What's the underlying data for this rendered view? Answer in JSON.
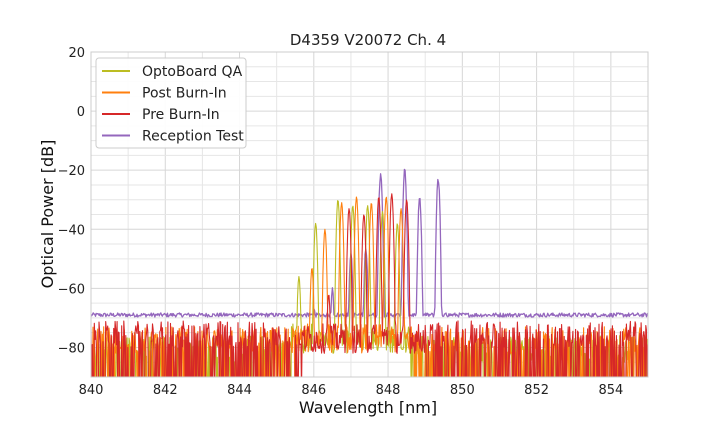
{
  "chart_data": {
    "type": "line",
    "title": "D4359 V20072 Ch. 4",
    "xlabel": "Wavelength [nm]",
    "ylabel": "Optical Power [dB]",
    "xlim": [
      840,
      855
    ],
    "ylim": [
      -90,
      20
    ],
    "xticks": [
      840,
      842,
      844,
      846,
      848,
      850,
      852,
      854
    ],
    "yticks": [
      20,
      0,
      -20,
      -40,
      -60,
      -80
    ],
    "grid": true,
    "legend_position": "top-left",
    "noise_floor": {
      "reception_test": -69,
      "burn_in": -80
    },
    "series": [
      {
        "name": "OptoBoard QA",
        "color": "#bcbd22",
        "floor": -85,
        "peaks": [
          {
            "x": 845.6,
            "y": -56
          },
          {
            "x": 846.05,
            "y": -38
          },
          {
            "x": 846.65,
            "y": -30
          },
          {
            "x": 847.05,
            "y": -32
          },
          {
            "x": 847.45,
            "y": -32
          },
          {
            "x": 847.85,
            "y": -34
          },
          {
            "x": 848.25,
            "y": -38
          }
        ]
      },
      {
        "name": "Post Burn-In",
        "color": "#ff7f0e",
        "floor": -82,
        "peaks": [
          {
            "x": 845.95,
            "y": -53
          },
          {
            "x": 846.3,
            "y": -40
          },
          {
            "x": 846.75,
            "y": -31
          },
          {
            "x": 847.15,
            "y": -29
          },
          {
            "x": 847.55,
            "y": -31
          },
          {
            "x": 847.95,
            "y": -29
          },
          {
            "x": 848.35,
            "y": -33
          }
        ]
      },
      {
        "name": "Pre Burn-In",
        "color": "#d62728",
        "floor": -80,
        "peaks": [
          {
            "x": 846.4,
            "y": -62
          },
          {
            "x": 846.95,
            "y": -33
          },
          {
            "x": 847.35,
            "y": -35
          },
          {
            "x": 847.75,
            "y": -29
          },
          {
            "x": 848.1,
            "y": -28
          },
          {
            "x": 848.5,
            "y": -30
          }
        ]
      },
      {
        "name": "Reception Test",
        "color": "#9467bd",
        "floor": -69,
        "peaks": [
          {
            "x": 846.0,
            "y": -66
          },
          {
            "x": 846.5,
            "y": -60
          },
          {
            "x": 847.0,
            "y": -48
          },
          {
            "x": 847.4,
            "y": -46
          },
          {
            "x": 847.8,
            "y": -21
          },
          {
            "x": 848.45,
            "y": -20
          },
          {
            "x": 848.85,
            "y": -30
          },
          {
            "x": 849.35,
            "y": -23
          }
        ]
      }
    ]
  }
}
